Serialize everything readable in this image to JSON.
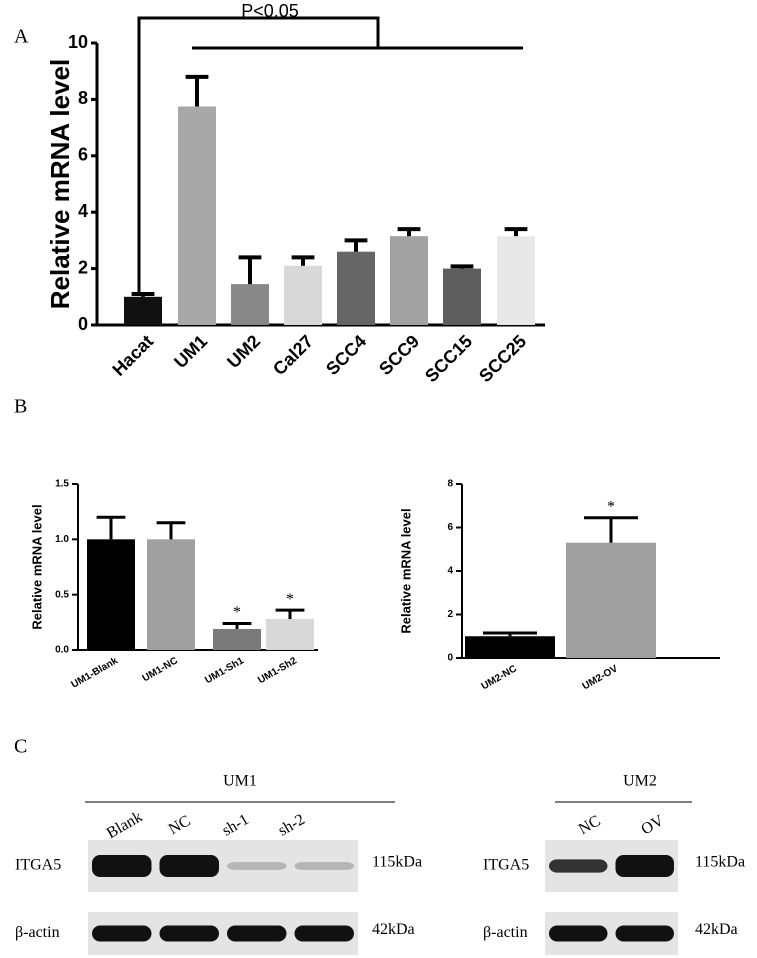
{
  "panel_labels": [
    "A",
    "B",
    "C"
  ],
  "chart_data": [
    {
      "type": "bar",
      "annotation": "P<0.05",
      "y_label": "Relative mRNA level",
      "categories": [
        "Hacat",
        "UM1",
        "UM2",
        "Cal27",
        "SCC4",
        "SCC9",
        "SCC15",
        "SCC25"
      ],
      "values": [
        1.0,
        7.75,
        1.45,
        2.1,
        2.6,
        3.15,
        2.0,
        3.15
      ],
      "errors": [
        0.1,
        1.05,
        0.95,
        0.3,
        0.4,
        0.25,
        0.08,
        0.25
      ],
      "colors": [
        "#111111",
        "#a8a8a8",
        "#878787",
        "#d8d8d8",
        "#666666",
        "#a2a2a2",
        "#5e5e5e",
        "#e8e8e8"
      ],
      "ylim": [
        0,
        10
      ],
      "yticks": [
        0,
        2,
        4,
        6,
        8,
        10
      ]
    },
    {
      "type": "bar",
      "y_label": "Relative mRNA level",
      "categories": [
        "UM1-Blank",
        "UM1-NC",
        "UM1-Sh1",
        "UM1-Sh2"
      ],
      "values": [
        1.0,
        1.0,
        0.19,
        0.28
      ],
      "errors": [
        0.2,
        0.15,
        0.05,
        0.08
      ],
      "significance": [
        null,
        null,
        "*",
        "*"
      ],
      "colors": [
        "#000000",
        "#a0a0a0",
        "#7a7a7a",
        "#d8d8d8"
      ],
      "ylim": [
        0,
        1.5
      ],
      "yticks": [
        {
          "value": 0,
          "label": "0.0"
        },
        0.5,
        {
          "value": 1,
          "label": "1.0"
        },
        1.5
      ]
    },
    {
      "type": "bar",
      "y_label": "Relative mRNA level",
      "categories": [
        "UM2-NC",
        "UM2-OV"
      ],
      "values": [
        1.0,
        5.3
      ],
      "errors": [
        0.15,
        1.15
      ],
      "significance": [
        null,
        "*"
      ],
      "colors": [
        "#000000",
        "#a0a0a0"
      ],
      "ylim": [
        0,
        8
      ],
      "yticks": [
        0,
        2,
        4,
        6,
        8
      ]
    }
  ],
  "blots": [
    {
      "group": "UM1",
      "lanes": [
        "Blank",
        "NC",
        "sh-1",
        "sh-2"
      ],
      "rows": [
        {
          "label": "ITGA5",
          "size": "115kDa"
        },
        {
          "label": "β-actin",
          "size": "42kDa"
        }
      ]
    },
    {
      "group": "UM2",
      "lanes": [
        "NC",
        "OV"
      ],
      "rows": [
        {
          "label": "ITGA5",
          "size": "115kDa"
        },
        {
          "label": "β-actin",
          "size": "42kDa"
        }
      ]
    }
  ]
}
